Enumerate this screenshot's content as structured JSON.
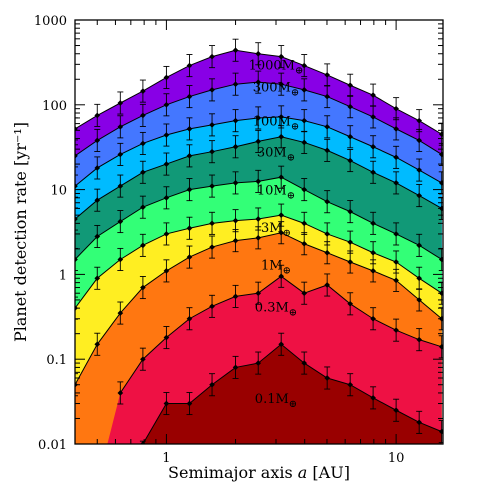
{
  "chart_data": {
    "type": "area",
    "title": "",
    "xlabel": "Semimajor axis a [AU]",
    "xlabel_parts": {
      "prefix": "Semimajor axis ",
      "variable": "a",
      "suffix": " [AU]"
    },
    "ylabel": "Planet detection rate [yr⁻¹]",
    "xscale": "log",
    "yscale": "log",
    "xlim": [
      0.4,
      16.0
    ],
    "ylim": [
      0.01,
      1000
    ],
    "x_tick_labels": [
      {
        "value": 1,
        "label": "1"
      },
      {
        "value": 10,
        "label": "10"
      }
    ],
    "y_tick_labels": [
      {
        "value": 0.01,
        "label": "0.01"
      },
      {
        "value": 0.1,
        "label": "0.1"
      },
      {
        "value": 1,
        "label": "1"
      },
      {
        "value": 10,
        "label": "10"
      },
      {
        "value": 100,
        "label": "100"
      },
      {
        "value": 1000,
        "label": "1000"
      }
    ],
    "x": [
      0.4,
      0.5,
      0.63,
      0.79,
      1.0,
      1.26,
      1.58,
      2.0,
      2.51,
      3.16,
      3.98,
      5.01,
      6.31,
      7.94,
      10.0,
      12.6,
      15.8
    ],
    "series": [
      {
        "name": "1000M⊕",
        "label_main": "1000M",
        "label_sub": "⊕",
        "label_x": 3.0,
        "label_y": 300,
        "color": "#8800e6",
        "values": [
          52,
          75,
          105,
          145,
          210,
          290,
          370,
          440,
          400,
          370,
          290,
          225,
          170,
          130,
          90,
          65,
          45
        ]
      },
      {
        "name": "300M⊕",
        "label_main": "300M",
        "label_sub": "⊕",
        "label_x": 3.0,
        "label_y": 165,
        "color": "#4477ff",
        "values": [
          25,
          38,
          55,
          75,
          100,
          125,
          150,
          175,
          185,
          175,
          150,
          125,
          95,
          72,
          52,
          38,
          26
        ]
      },
      {
        "name": "100M⊕",
        "label_main": "100M",
        "label_sub": "⊕",
        "label_x": 3.0,
        "label_y": 65,
        "color": "#00bbff",
        "values": [
          11,
          18,
          26,
          35,
          44,
          52,
          58,
          65,
          70,
          72,
          65,
          55,
          42,
          32,
          24,
          17,
          12
        ]
      },
      {
        "name": "30M⊕",
        "label_main": "30M",
        "label_sub": "⊕",
        "label_x": 3.0,
        "label_y": 28,
        "color": "#119977",
        "values": [
          4.5,
          7.5,
          11,
          16,
          20,
          25,
          28,
          32,
          37,
          42,
          36,
          29,
          22,
          16,
          12,
          8.5,
          6
        ]
      },
      {
        "name": "10M⊕",
        "label_main": "10M",
        "label_sub": "⊕",
        "label_x": 3.0,
        "label_y": 10,
        "color": "#33ff77",
        "values": [
          1.5,
          2.8,
          4.2,
          6.2,
          8,
          10,
          11,
          12,
          12.5,
          14,
          10,
          7.2,
          5.5,
          4,
          3,
          2.2,
          1.5
        ]
      },
      {
        "name": "3M⊕",
        "label_main": "3M",
        "label_sub": "⊕",
        "label_x": 3.0,
        "label_y": 3.6,
        "color": "#ffee22",
        "values": [
          0.4,
          0.9,
          1.5,
          2.2,
          3,
          3.5,
          4,
          4.3,
          4.5,
          5,
          4,
          3,
          2.4,
          1.8,
          1.4,
          0.9,
          0.6
        ]
      },
      {
        "name": "1M⊕",
        "label_main": "1M",
        "label_sub": "⊕",
        "label_x": 3.0,
        "label_y": 1.3,
        "color": "#ff7711",
        "values": [
          0.05,
          0.15,
          0.35,
          0.7,
          1.1,
          1.6,
          2.1,
          2.5,
          2.7,
          3.1,
          2.3,
          1.8,
          1.4,
          1.1,
          0.85,
          0.5,
          0.3
        ]
      },
      {
        "name": "0.3M⊕",
        "label_main": "0.3M",
        "label_sub": "⊕",
        "label_x": 3.0,
        "label_y": 0.42,
        "color": "#ee1144",
        "values": [
          0.0,
          0.0,
          0.04,
          0.1,
          0.18,
          0.3,
          0.42,
          0.55,
          0.6,
          0.95,
          0.6,
          0.75,
          0.45,
          0.3,
          0.22,
          0.17,
          0.14
        ]
      },
      {
        "name": "0.1M⊕",
        "label_main": "0.1M",
        "label_sub": "⊕",
        "label_x": 3.0,
        "label_y": 0.035,
        "color": "#990000",
        "values": [
          0.0,
          0.0,
          0.0,
          0.008,
          0.03,
          0.03,
          0.05,
          0.08,
          0.09,
          0.15,
          0.09,
          0.06,
          0.05,
          0.035,
          0.025,
          0.018,
          0.014
        ]
      }
    ]
  }
}
